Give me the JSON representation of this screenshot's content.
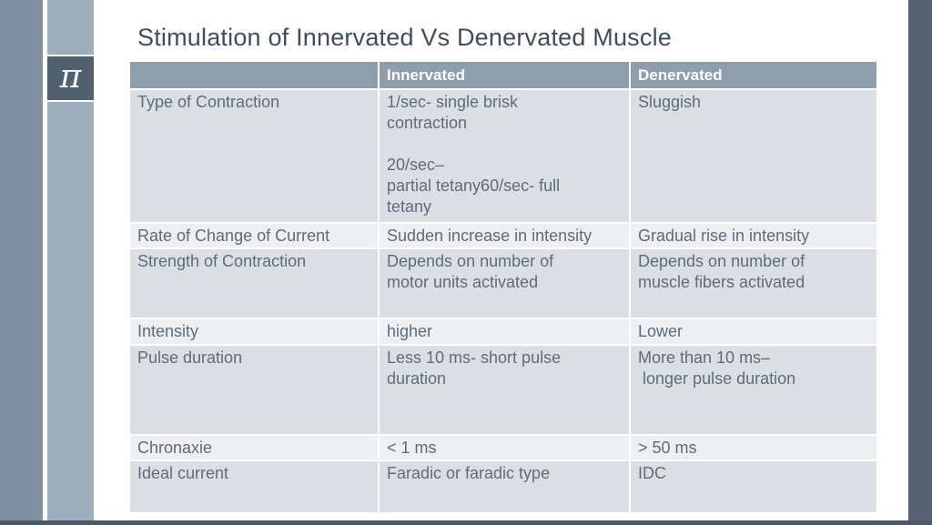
{
  "slide": {
    "title": "Stimulation of Innervated Vs Denervated Muscle",
    "logo_glyph": "π"
  },
  "colors": {
    "frame_outer_bar": "#7e90a2",
    "frame_inner_bar": "#9eaebd",
    "logo_box": "#50606f",
    "right_bar": "#566271",
    "bottom_bar": "#4d5966",
    "header_row": "#8e9ead",
    "row_dark": "#dbdfe4",
    "row_light": "#edeff2",
    "title_text": "#3e4e5d",
    "body_text": "#5d6c7b"
  },
  "table": {
    "columns": [
      "",
      "Innervated",
      "Denervated"
    ],
    "rows": [
      {
        "label": "Type of Contraction",
        "innervated": "1/sec- single brisk\ncontraction\n\n20/sec–\npartial tetany60/sec- full\ntetany",
        "denervated": "Sluggish"
      },
      {
        "label": "Rate of Change of Current",
        "innervated": "Sudden increase in intensity",
        "denervated": "Gradual rise in intensity"
      },
      {
        "label": "Strength of Contraction",
        "innervated": "Depends on number of\nmotor units activated",
        "denervated": "Depends on number of\nmuscle fibers activated"
      },
      {
        "label": "Intensity",
        "innervated": "higher",
        "denervated": "Lower"
      },
      {
        "label": "Pulse duration",
        "innervated": "Less 10 ms- short pulse\nduration",
        "denervated": "More than 10 ms–\n longer pulse duration"
      },
      {
        "label": "Chronaxie",
        "innervated": "< 1 ms",
        "denervated": "> 50 ms"
      },
      {
        "label": "Ideal current",
        "innervated": "Faradic or faradic type",
        "denervated": "IDC"
      }
    ]
  }
}
